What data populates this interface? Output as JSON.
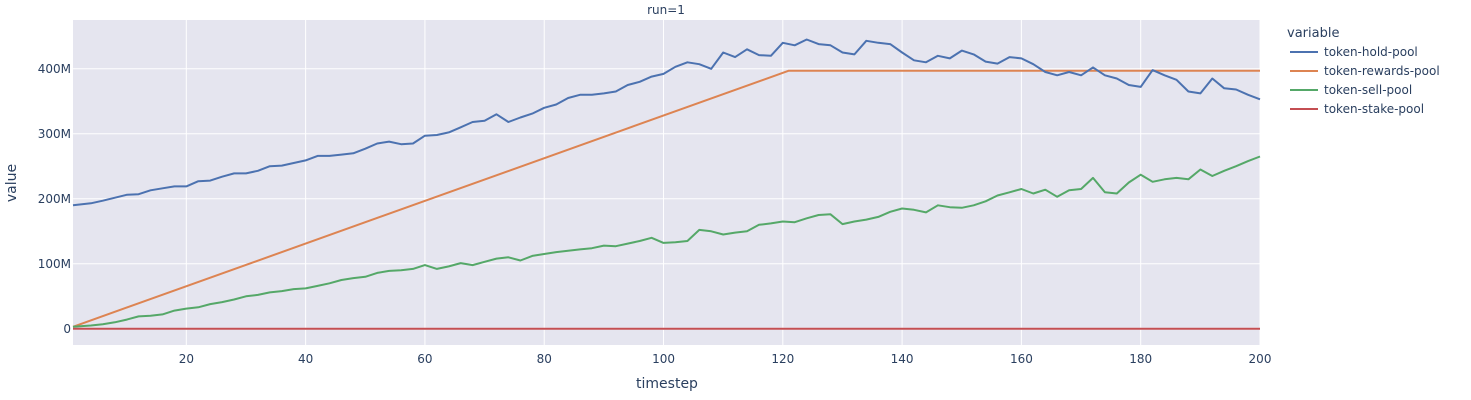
{
  "chart_data": {
    "type": "line",
    "title": "run=1",
    "xlabel": "timestep",
    "ylabel": "value",
    "xlim": [
      1,
      200
    ],
    "ylim": [
      -25000000,
      475000000
    ],
    "x_ticks": [
      20,
      40,
      60,
      80,
      100,
      120,
      140,
      160,
      180,
      200
    ],
    "x_tick_labels": [
      "20",
      "40",
      "60",
      "80",
      "100",
      "120",
      "140",
      "160",
      "180",
      "200"
    ],
    "y_ticks": [
      0,
      100000000,
      200000000,
      300000000,
      400000000
    ],
    "y_tick_labels": [
      "0",
      "100M",
      "200M",
      "300M",
      "400M"
    ],
    "grid": true,
    "legend_title": "variable",
    "legend_position": "right",
    "series": [
      {
        "name": "token-hold-pool",
        "color": "#4c72b0",
        "points": [
          [
            1,
            190
          ],
          [
            4,
            193
          ],
          [
            6,
            197
          ],
          [
            10,
            206
          ],
          [
            12,
            207
          ],
          [
            14,
            213
          ],
          [
            16,
            216
          ],
          [
            18,
            219
          ],
          [
            20,
            219
          ],
          [
            22,
            227
          ],
          [
            24,
            228
          ],
          [
            26,
            234
          ],
          [
            28,
            239
          ],
          [
            30,
            239
          ],
          [
            32,
            243
          ],
          [
            34,
            250
          ],
          [
            36,
            251
          ],
          [
            40,
            259
          ],
          [
            42,
            266
          ],
          [
            44,
            266
          ],
          [
            46,
            268
          ],
          [
            48,
            270
          ],
          [
            50,
            277
          ],
          [
            52,
            285
          ],
          [
            54,
            288
          ],
          [
            56,
            284
          ],
          [
            58,
            285
          ],
          [
            60,
            297
          ],
          [
            62,
            298
          ],
          [
            64,
            302
          ],
          [
            66,
            310
          ],
          [
            68,
            318
          ],
          [
            70,
            320
          ],
          [
            72,
            330
          ],
          [
            74,
            318
          ],
          [
            76,
            325
          ],
          [
            78,
            331
          ],
          [
            80,
            340
          ],
          [
            82,
            345
          ],
          [
            84,
            355
          ],
          [
            86,
            360
          ],
          [
            88,
            360
          ],
          [
            90,
            362
          ],
          [
            92,
            365
          ],
          [
            94,
            375
          ],
          [
            96,
            380
          ],
          [
            98,
            388
          ],
          [
            100,
            392
          ],
          [
            102,
            403
          ],
          [
            104,
            410
          ],
          [
            106,
            407
          ],
          [
            108,
            400
          ],
          [
            110,
            425
          ],
          [
            112,
            418
          ],
          [
            114,
            430
          ],
          [
            116,
            421
          ],
          [
            118,
            420
          ],
          [
            120,
            440
          ],
          [
            122,
            436
          ],
          [
            124,
            445
          ],
          [
            126,
            438
          ],
          [
            128,
            436
          ],
          [
            130,
            425
          ],
          [
            132,
            422
          ],
          [
            134,
            443
          ],
          [
            136,
            440
          ],
          [
            138,
            438
          ],
          [
            140,
            425
          ],
          [
            142,
            413
          ],
          [
            144,
            410
          ],
          [
            146,
            420
          ],
          [
            148,
            416
          ],
          [
            150,
            428
          ],
          [
            152,
            422
          ],
          [
            154,
            411
          ],
          [
            156,
            408
          ],
          [
            158,
            418
          ],
          [
            160,
            416
          ],
          [
            162,
            407
          ],
          [
            164,
            395
          ],
          [
            166,
            390
          ],
          [
            168,
            395
          ],
          [
            170,
            390
          ],
          [
            172,
            402
          ],
          [
            174,
            390
          ],
          [
            176,
            385
          ],
          [
            178,
            375
          ],
          [
            180,
            372
          ],
          [
            182,
            398
          ],
          [
            184,
            390
          ],
          [
            186,
            383
          ],
          [
            188,
            365
          ],
          [
            190,
            362
          ],
          [
            192,
            385
          ],
          [
            194,
            370
          ],
          [
            196,
            368
          ],
          [
            198,
            360
          ],
          [
            200,
            353
          ]
        ]
      },
      {
        "name": "token-rewards-pool",
        "color": "#dd8452",
        "points": [
          [
            1,
            3
          ],
          [
            121,
            397
          ],
          [
            200,
            397
          ]
        ]
      },
      {
        "name": "token-sell-pool",
        "color": "#55a868",
        "points": [
          [
            1,
            3
          ],
          [
            4,
            5
          ],
          [
            6,
            7
          ],
          [
            8,
            10
          ],
          [
            10,
            14
          ],
          [
            12,
            19
          ],
          [
            14,
            20
          ],
          [
            16,
            22
          ],
          [
            18,
            28
          ],
          [
            20,
            31
          ],
          [
            22,
            33
          ],
          [
            24,
            38
          ],
          [
            26,
            41
          ],
          [
            28,
            45
          ],
          [
            30,
            50
          ],
          [
            32,
            52
          ],
          [
            34,
            56
          ],
          [
            36,
            58
          ],
          [
            38,
            61
          ],
          [
            40,
            62
          ],
          [
            42,
            66
          ],
          [
            44,
            70
          ],
          [
            46,
            75
          ],
          [
            48,
            78
          ],
          [
            50,
            80
          ],
          [
            52,
            86
          ],
          [
            54,
            89
          ],
          [
            56,
            90
          ],
          [
            58,
            92
          ],
          [
            60,
            98
          ],
          [
            62,
            92
          ],
          [
            64,
            96
          ],
          [
            66,
            101
          ],
          [
            68,
            98
          ],
          [
            70,
            103
          ],
          [
            72,
            108
          ],
          [
            74,
            110
          ],
          [
            76,
            105
          ],
          [
            78,
            112
          ],
          [
            80,
            115
          ],
          [
            82,
            118
          ],
          [
            84,
            120
          ],
          [
            86,
            122
          ],
          [
            88,
            124
          ],
          [
            90,
            128
          ],
          [
            92,
            127
          ],
          [
            94,
            131
          ],
          [
            96,
            135
          ],
          [
            98,
            140
          ],
          [
            100,
            132
          ],
          [
            102,
            133
          ],
          [
            104,
            135
          ],
          [
            106,
            152
          ],
          [
            108,
            150
          ],
          [
            110,
            145
          ],
          [
            112,
            148
          ],
          [
            114,
            150
          ],
          [
            116,
            160
          ],
          [
            118,
            162
          ],
          [
            120,
            165
          ],
          [
            122,
            164
          ],
          [
            124,
            170
          ],
          [
            126,
            175
          ],
          [
            128,
            176
          ],
          [
            130,
            161
          ],
          [
            132,
            165
          ],
          [
            134,
            168
          ],
          [
            136,
            172
          ],
          [
            138,
            180
          ],
          [
            140,
            185
          ],
          [
            142,
            183
          ],
          [
            144,
            179
          ],
          [
            146,
            190
          ],
          [
            148,
            187
          ],
          [
            150,
            186
          ],
          [
            152,
            190
          ],
          [
            154,
            196
          ],
          [
            156,
            205
          ],
          [
            158,
            210
          ],
          [
            160,
            215
          ],
          [
            162,
            208
          ],
          [
            164,
            214
          ],
          [
            166,
            203
          ],
          [
            168,
            213
          ],
          [
            170,
            215
          ],
          [
            172,
            232
          ],
          [
            174,
            210
          ],
          [
            176,
            208
          ],
          [
            178,
            225
          ],
          [
            180,
            237
          ],
          [
            182,
            226
          ],
          [
            184,
            230
          ],
          [
            186,
            232
          ],
          [
            188,
            230
          ],
          [
            190,
            245
          ],
          [
            192,
            235
          ],
          [
            194,
            243
          ],
          [
            196,
            250
          ],
          [
            198,
            258
          ],
          [
            200,
            265
          ]
        ]
      },
      {
        "name": "token-stake-pool",
        "color": "#c44e52",
        "points": [
          [
            1,
            0
          ],
          [
            200,
            0
          ]
        ]
      }
    ],
    "y_units": "millions"
  }
}
